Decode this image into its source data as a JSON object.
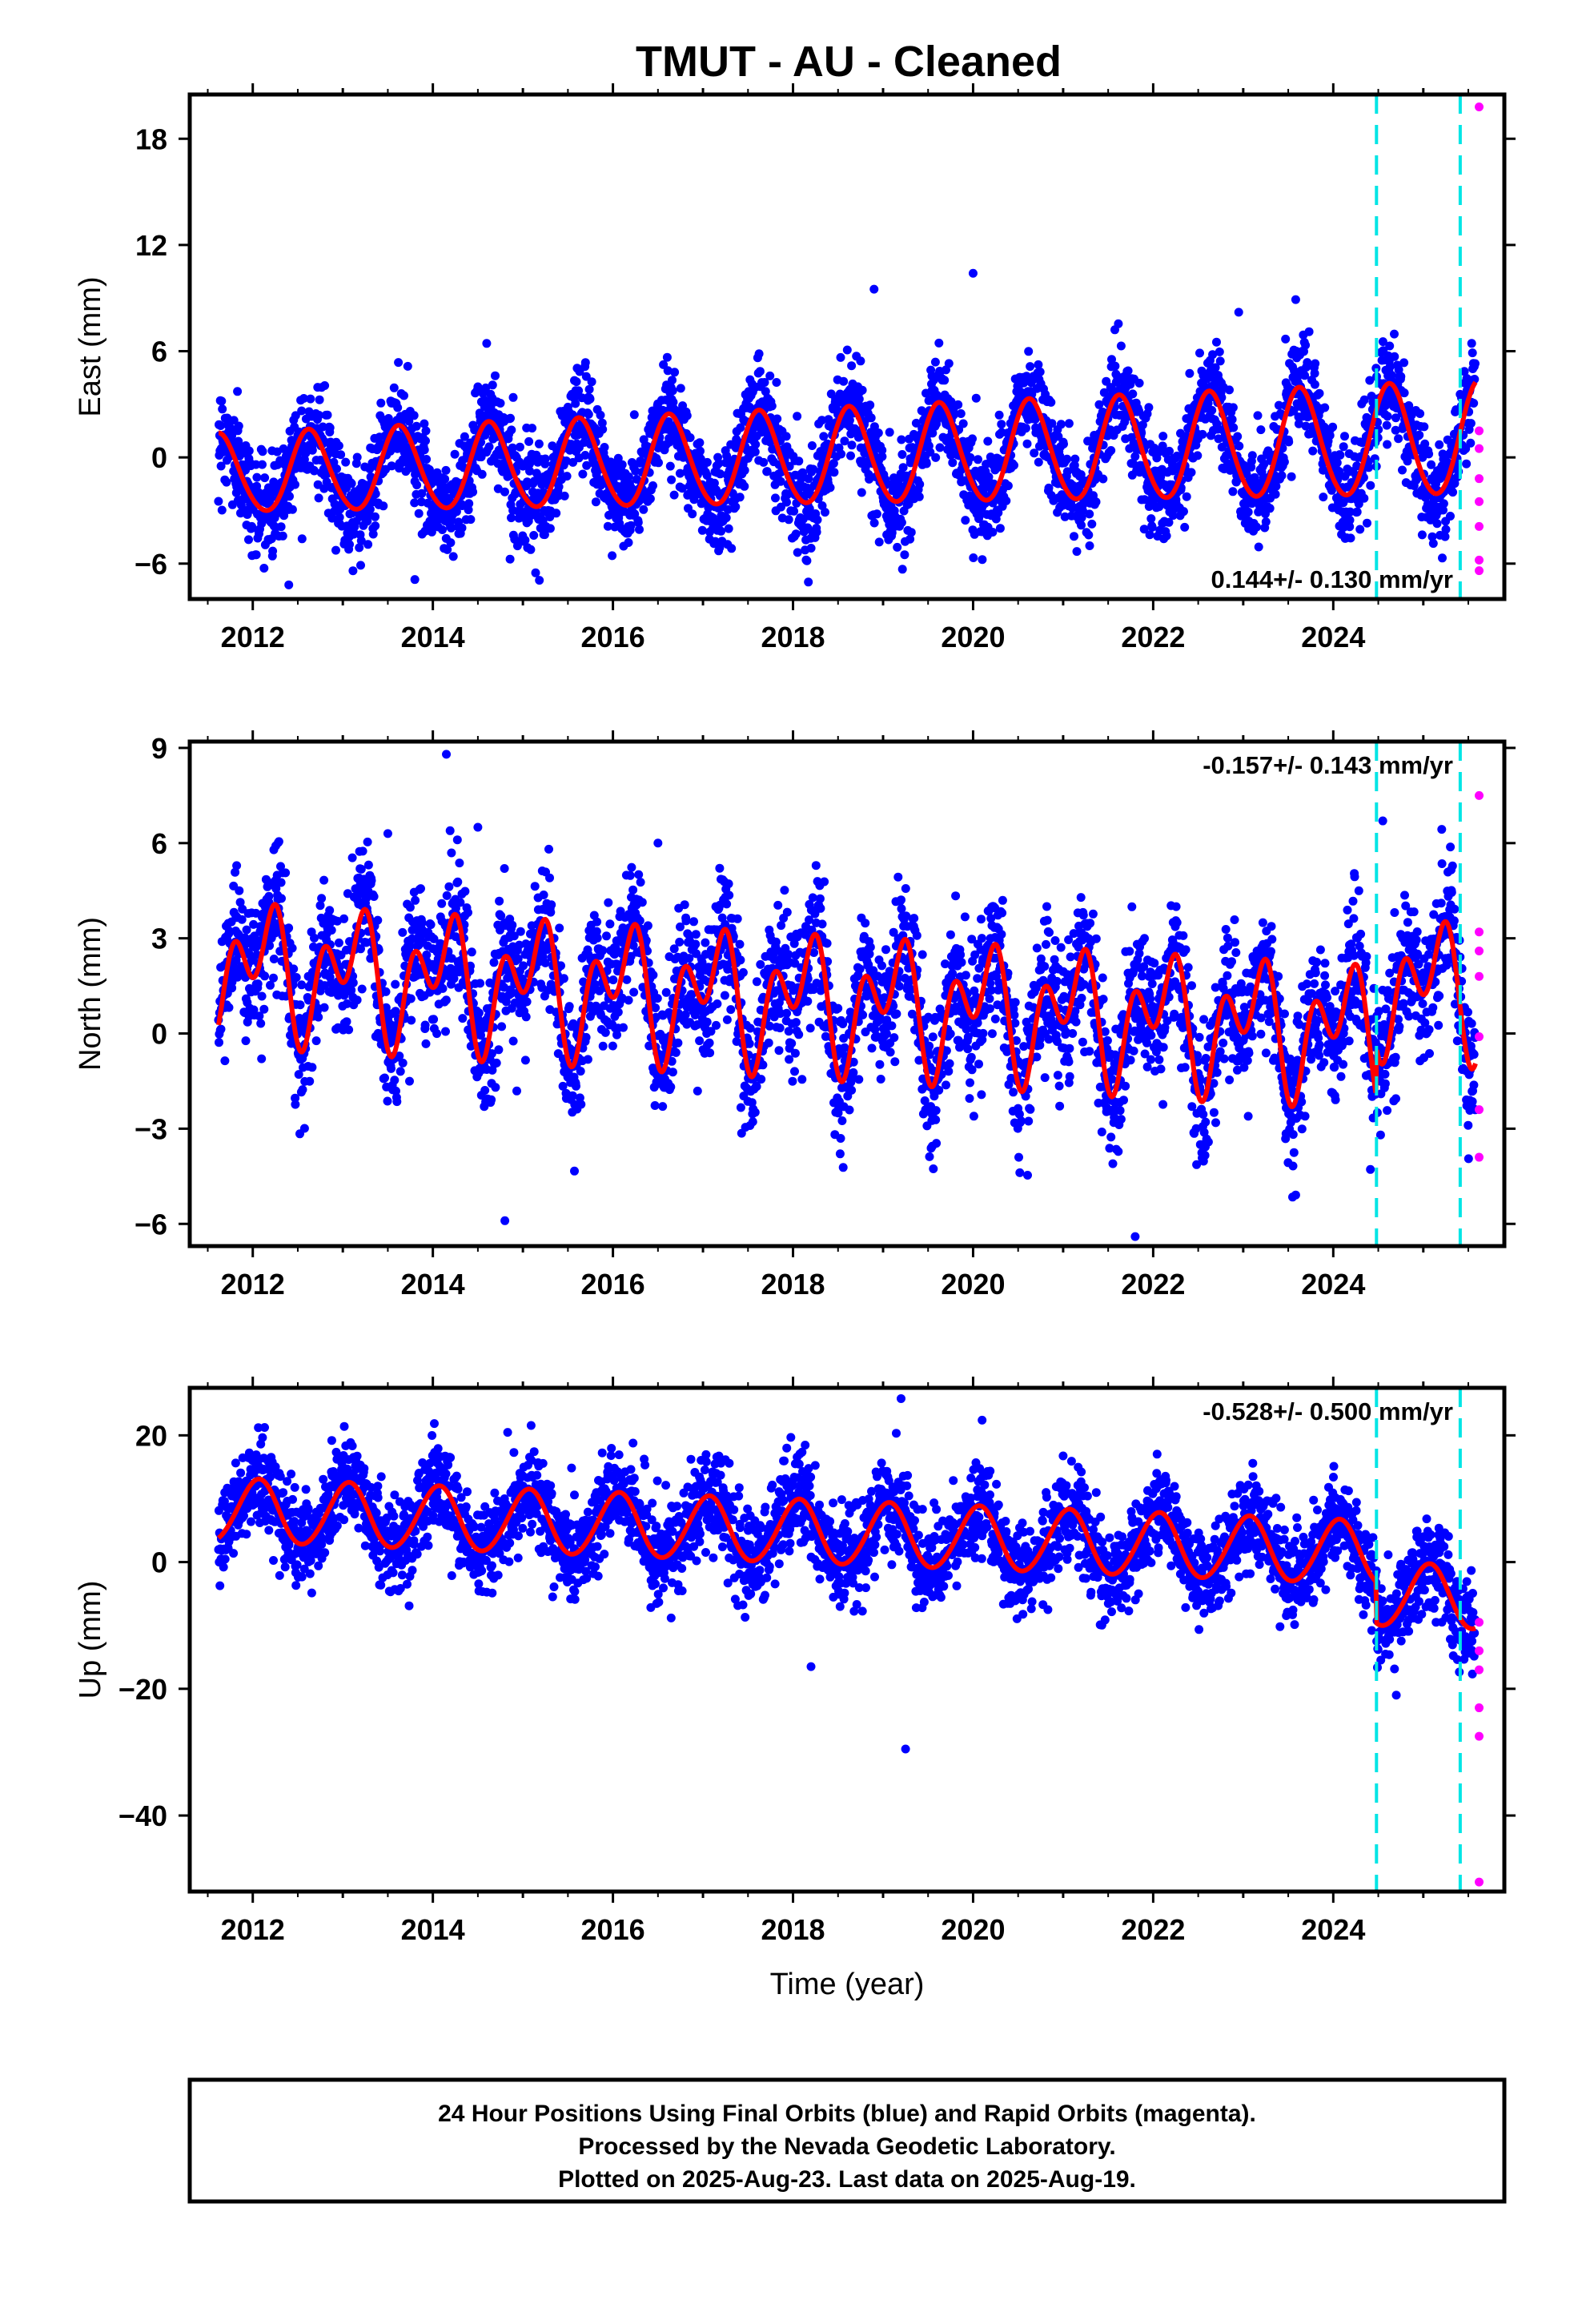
{
  "chart_data": {
    "type": "scatter",
    "title": "TMUT  - AU - Cleaned",
    "xlabel": "Time (year)",
    "xlim": [
      2011.3,
      2025.9
    ],
    "xticks": [
      2012,
      2014,
      2016,
      2018,
      2020,
      2022,
      2024
    ],
    "xtick_labels": [
      "2012",
      "2014",
      "2016",
      "2018",
      "2020",
      "2022",
      "2024"
    ],
    "data_span": [
      2011.62,
      2025.63
    ],
    "final_orbits_color": "#0000ff",
    "rapid_orbits_color": "#ff00ff",
    "model_color": "#ff0000",
    "vertical_line_color": "#00e5e5",
    "vertical_lines": [
      2024.48,
      2025.41
    ],
    "rapid_orbit_start": 2025.6,
    "panels": [
      {
        "ylabel": "East (mm)",
        "ylim": [
          -8,
          20.5
        ],
        "yticks": [
          18,
          12,
          6,
          0,
          -6
        ],
        "ytick_labels": [
          "18",
          "12",
          "6",
          "0",
          "−6"
        ],
        "rate_text": "0.144+/- 0.130 mm/yr",
        "rate_position": "bottom-right",
        "model": {
          "trend_mm_per_yr": 0.144,
          "offset_mm": 0.0,
          "annual_amplitude_mm": [
            2.2,
            3.2
          ],
          "annual_phase_rad": -2.4,
          "semiannual_amplitude_mm": 0.2,
          "semiannual_phase_rad": 0.5,
          "steps": [
            {
              "epoch": 2024.48,
              "size_mm": 0
            }
          ],
          "late_offset_mm": 0
        },
        "scatter_sd_mm": 1.4,
        "outliers": [
          [
            2018.9,
            9.5
          ],
          [
            2020.0,
            10.4
          ],
          [
            2022.95,
            8.2
          ],
          [
            2012.4,
            -7.2
          ],
          [
            2013.8,
            -6.9
          ]
        ],
        "rapid_points": [
          [
            2025.62,
            19.8
          ],
          [
            2025.62,
            1.5
          ],
          [
            2025.62,
            0.5
          ],
          [
            2025.62,
            -1.2
          ],
          [
            2025.62,
            -2.5
          ],
          [
            2025.62,
            -3.9
          ],
          [
            2025.62,
            -5.8
          ],
          [
            2025.62,
            -6.4
          ]
        ]
      },
      {
        "ylabel": "North (mm)",
        "ylim": [
          -6.7,
          9.2
        ],
        "yticks": [
          9,
          6,
          3,
          0,
          -3,
          -6
        ],
        "ytick_labels": [
          "9",
          "6",
          "3",
          "0",
          "−3",
          "−6"
        ],
        "rate_text": "-0.157+/- 0.143 mm/yr",
        "rate_position": "top-right",
        "model": {
          "trend_mm_per_yr": -0.157,
          "offset_mm": 1.0,
          "annual_amplitude_mm": [
            1.3,
            1.3
          ],
          "annual_phase_rad": 0.9,
          "semiannual_amplitude_mm": 1.35,
          "semiannual_phase_rad": -1.9,
          "steps": [
            {
              "epoch": 2024.48,
              "size_mm": 1.5
            }
          ],
          "late_offset_mm": 0
        },
        "scatter_sd_mm": 1.05,
        "outliers": [
          [
            2014.15,
            8.8
          ],
          [
            2014.5,
            6.5
          ],
          [
            2016.5,
            6.0
          ],
          [
            2013.5,
            6.3
          ],
          [
            2014.8,
            -5.9
          ],
          [
            2021.8,
            -6.4
          ],
          [
            2024.55,
            6.7
          ]
        ],
        "rapid_points": [
          [
            2025.62,
            7.5
          ],
          [
            2025.62,
            3.2
          ],
          [
            2025.62,
            2.6
          ],
          [
            2025.62,
            1.8
          ],
          [
            2025.62,
            -0.1
          ],
          [
            2025.62,
            -2.4
          ],
          [
            2025.62,
            -3.9
          ]
        ]
      },
      {
        "ylabel": "Up (mm)",
        "ylim": [
          -52,
          27.5
        ],
        "yticks": [
          20,
          0,
          -20,
          -40
        ],
        "ytick_labels": [
          "20",
          "0",
          "−20",
          "−40"
        ],
        "rate_text": "-0.528+/- 0.500 mm/yr",
        "rate_position": "top-right",
        "model": {
          "trend_mm_per_yr": -0.528,
          "offset_mm": 4.5,
          "annual_amplitude_mm": [
            5.0,
            5.0
          ],
          "annual_phase_rad": 1.2,
          "semiannual_amplitude_mm": 0.3,
          "semiannual_phase_rad": 0.0,
          "steps": [
            {
              "epoch": 2024.48,
              "size_mm": -6.5
            }
          ],
          "late_offset_mm": 0
        },
        "scatter_sd_mm": 3.6,
        "outliers": [
          [
            2019.2,
            25.8
          ],
          [
            2020.1,
            22.4
          ],
          [
            2019.25,
            -29.5
          ],
          [
            2018.2,
            -16.5
          ],
          [
            2024.7,
            -21.0
          ]
        ],
        "rapid_points": [
          [
            2025.62,
            -9.5
          ],
          [
            2025.62,
            -14.0
          ],
          [
            2025.62,
            -17.0
          ],
          [
            2025.62,
            -23.0
          ],
          [
            2025.62,
            -27.5
          ],
          [
            2025.62,
            -50.5
          ]
        ]
      }
    ]
  },
  "footer": {
    "line1": "24 Hour Positions Using Final Orbits (blue) and Rapid Orbits (magenta).",
    "line2": "Processed by the Nevada Geodetic Laboratory.",
    "line3": "Plotted on 2025-Aug-23. Last data on 2025-Aug-19."
  }
}
